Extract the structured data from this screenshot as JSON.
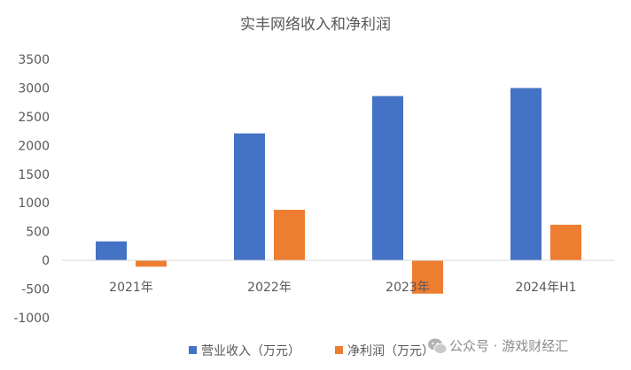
{
  "chart_data": {
    "type": "bar",
    "title": "实丰网络收入和净利润",
    "categories": [
      "2021年",
      "2022年",
      "2023年",
      "2024年H1"
    ],
    "series": [
      {
        "name": "营业收入（万元）",
        "color": "#4472C4",
        "values": [
          330,
          2210,
          2860,
          3000
        ]
      },
      {
        "name": "净利润（万元）",
        "color": "#ED7D31",
        "values": [
          -110,
          880,
          -580,
          620
        ]
      }
    ],
    "ylim": [
      -1000,
      3500
    ],
    "yticks": [
      "3500",
      "3000",
      "2500",
      "2000",
      "1500",
      "1000",
      "500",
      "0",
      "-500",
      "-1000"
    ],
    "grid": false,
    "legend": "bottom"
  },
  "watermark": {
    "text": "公众号 · 游戏财经汇",
    "icon": "wechat-icon"
  }
}
